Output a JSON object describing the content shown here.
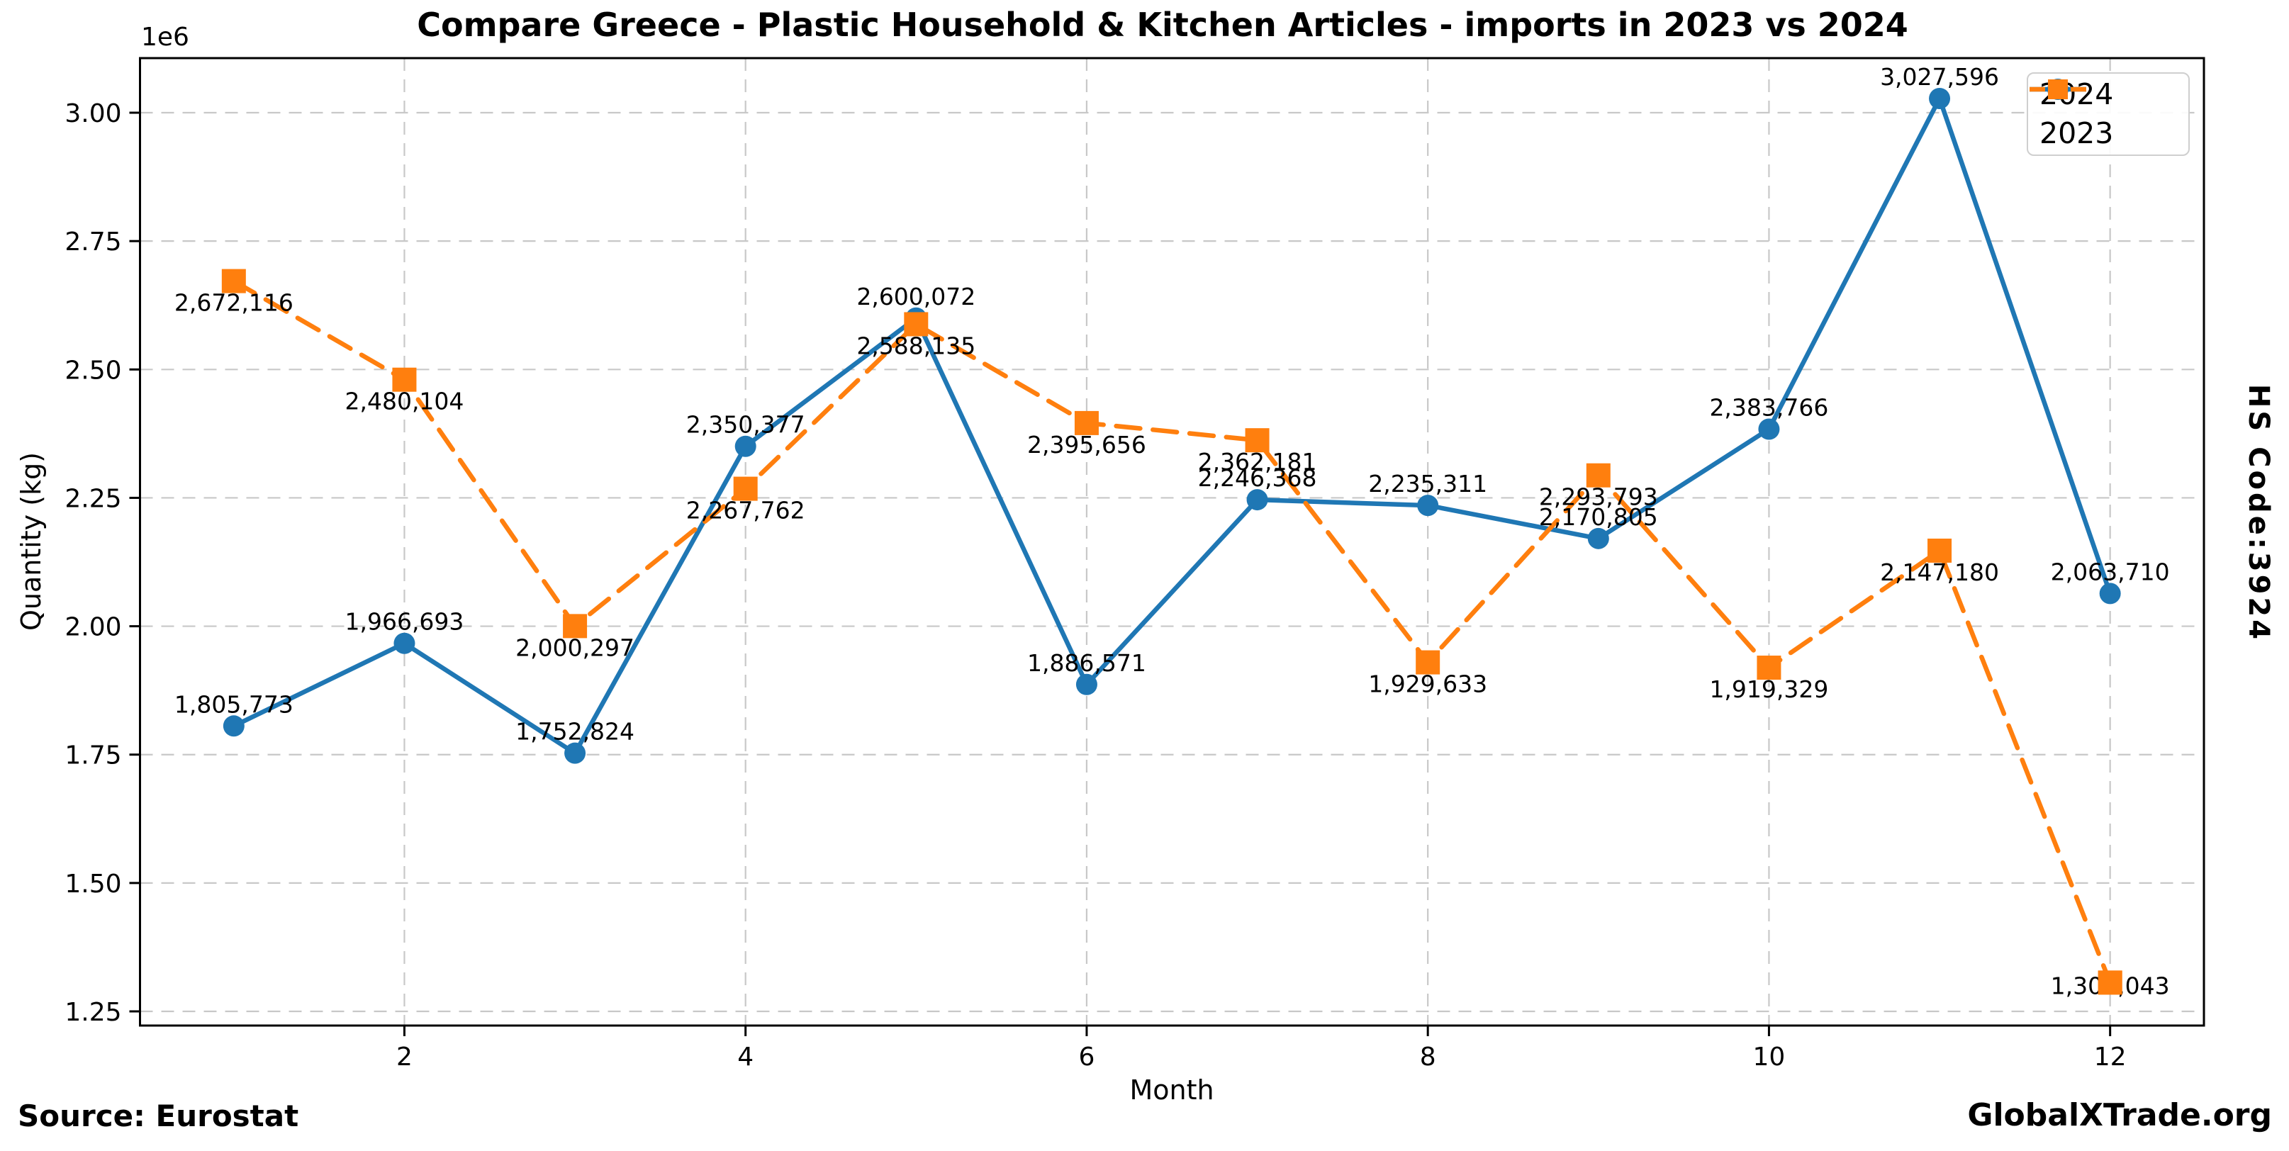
{
  "chart_data": {
    "type": "line",
    "title": "Compare Greece - Plastic Household & Kitchen Articles - imports in 2023 vs 2024",
    "xlabel": "Month",
    "ylabel": "Quantity (kg)",
    "right_label": "HS Code:3924",
    "offset_text": "1e6",
    "grid": true,
    "legend_position": "upper right",
    "months": [
      1,
      2,
      3,
      4,
      5,
      6,
      7,
      8,
      9,
      10,
      11,
      12
    ],
    "xlim": [
      0.45,
      12.55
    ],
    "ylim": [
      1222400,
      3106300
    ],
    "xticks": {
      "values": [
        2,
        4,
        6,
        8,
        10,
        12
      ],
      "labels": [
        "2",
        "4",
        "6",
        "8",
        "10",
        "12"
      ]
    },
    "yticks": {
      "values": [
        1250000,
        1500000,
        1750000,
        2000000,
        2250000,
        2500000,
        2750000,
        3000000
      ],
      "labels": [
        "1.25",
        "1.50",
        "1.75",
        "2.00",
        "2.25",
        "2.50",
        "2.75",
        "3.00"
      ]
    },
    "series": [
      {
        "name": "2024",
        "color": "#1f77b4",
        "marker": "circle",
        "linestyle": "solid",
        "values": [
          1805773,
          1966693,
          1752824,
          2350377,
          2600072,
          1886571,
          2246368,
          2235311,
          2170805,
          2383766,
          3027596,
          2063710
        ],
        "labels": [
          "1,805,773",
          "1,966,693",
          "1,752,824",
          "2,350,377",
          "2,600,072",
          "1,886,571",
          "2,246,368",
          "2,235,311",
          "2,170,805",
          "2,383,766",
          "3,027,596",
          "2,063,710"
        ]
      },
      {
        "name": "2023",
        "color": "#ff7f0e",
        "marker": "square",
        "linestyle": "dashed",
        "values": [
          2672116,
          2480104,
          2000297,
          2267762,
          2588135,
          2395656,
          2362181,
          1929633,
          2293793,
          1919329,
          2147180,
          1306043
        ],
        "labels": [
          "2,672,116",
          "2,480,104",
          "2,000,297",
          "2,267,762",
          "2,588,135",
          "2,395,656",
          "2,362,181",
          "1,929,633",
          "2,293,793",
          "1,919,329",
          "2,147,180",
          "1,306,043"
        ]
      }
    ]
  },
  "footer": {
    "source": "Source: Eurostat",
    "branding": "GlobalXTrade.org"
  },
  "style_colors": {
    "series_2024": "#1f77b4",
    "series_2023": "#ff7f0e",
    "gridline": "#c8c8c8",
    "frame": "#000000"
  }
}
